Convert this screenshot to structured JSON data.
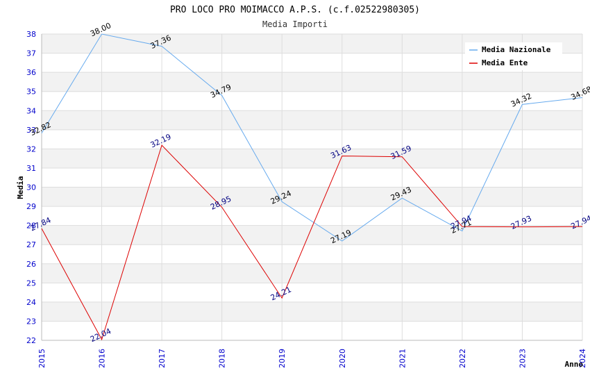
{
  "chart_data": {
    "type": "line",
    "title": "PRO LOCO PRO MOIMACCO A.P.S. (c.f.02522980305)",
    "subtitle": "Media Importi",
    "xlabel": "Anno",
    "ylabel": "Media",
    "x": [
      "2015",
      "2016",
      "2017",
      "2018",
      "2019",
      "2020",
      "2021",
      "2022",
      "2023",
      "2024"
    ],
    "ylim": [
      22,
      38
    ],
    "yticks": [
      "22",
      "23",
      "24",
      "25",
      "26",
      "27",
      "28",
      "29",
      "30",
      "31",
      "32",
      "33",
      "34",
      "35",
      "36",
      "37",
      "38"
    ],
    "grid": true,
    "legend_position": "top-right",
    "series": [
      {
        "name": "Media Nazionale",
        "color": "#66aaee",
        "label_color": "#000000",
        "values": [
          32.82,
          38.0,
          37.36,
          34.79,
          29.24,
          27.19,
          29.43,
          27.71,
          34.32,
          34.68
        ],
        "labels": [
          "32.82",
          "38.00",
          "37.36",
          "34.79",
          "29.24",
          "27.19",
          "29.43",
          "27.71",
          "34.32",
          "34.68"
        ]
      },
      {
        "name": "Media Ente",
        "color": "#dd0000",
        "label_color": "#000080",
        "values": [
          27.84,
          22.04,
          32.19,
          28.95,
          24.21,
          31.63,
          31.59,
          27.94,
          27.93,
          27.94
        ],
        "labels": [
          "27.84",
          "22.04",
          "32.19",
          "28.95",
          "24.21",
          "31.63",
          "31.59",
          "27.94",
          "27.93",
          "27.94"
        ]
      }
    ]
  }
}
